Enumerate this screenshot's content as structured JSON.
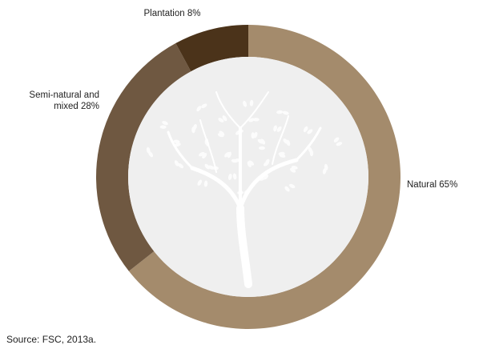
{
  "chart_data": {
    "type": "donut",
    "categories": [
      "Natural",
      "Semi-natural and mixed",
      "Plantation"
    ],
    "values": [
      65,
      28,
      8
    ],
    "value_labels": [
      "65%",
      "28%",
      "8%"
    ],
    "colors": [
      "#a48b6c",
      "#6f5841",
      "#4b331a"
    ],
    "source": "Source: FSC, 2013a."
  }
}
